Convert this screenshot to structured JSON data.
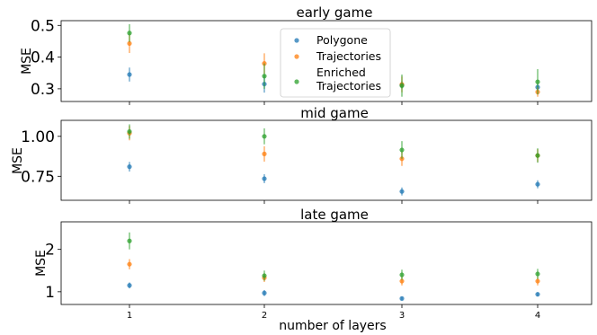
{
  "xlabel": "number of layers",
  "legend": {
    "placement": "upper center of top panel",
    "entries": [
      {
        "label": "Polygone",
        "color": "#1f77b4"
      },
      {
        "label": "Trajectories",
        "color": "#ff7f0e"
      },
      {
        "label": "Enriched\nTrajectories",
        "color": "#2ca02c"
      }
    ]
  },
  "chart_data": [
    {
      "type": "scatter",
      "title": "early game",
      "ylabel": "MSE",
      "xlabel": "",
      "x": [
        1,
        2,
        3,
        4
      ],
      "xticks": [
        1,
        2,
        3,
        4
      ],
      "ylim": [
        0.26,
        0.515
      ],
      "yticks": [
        0.3,
        0.4,
        0.5
      ],
      "ytick_labels": [
        "0.3",
        "0.4",
        "0.5"
      ],
      "grid": false,
      "series": [
        {
          "name": "Polygone",
          "color": "#1f77b4",
          "values": [
            0.345,
            0.315,
            0.312,
            0.305
          ],
          "err": [
            0.022,
            0.027,
            0.012,
            0.012
          ]
        },
        {
          "name": "Trajectories",
          "color": "#ff7f0e",
          "values": [
            0.443,
            0.38,
            0.314,
            0.29
          ],
          "err": [
            0.03,
            0.032,
            0.025,
            0.015
          ]
        },
        {
          "name": "Enriched Trajectories",
          "color": "#2ca02c",
          "values": [
            0.476,
            0.34,
            0.31,
            0.322
          ],
          "err": [
            0.028,
            0.04,
            0.035,
            0.04
          ]
        }
      ]
    },
    {
      "type": "scatter",
      "title": "mid game",
      "ylabel": "MSE",
      "xlabel": "",
      "x": [
        1,
        2,
        3,
        4
      ],
      "xticks": [
        1,
        2,
        3,
        4
      ],
      "ylim": [
        0.6,
        1.1
      ],
      "yticks": [
        0.75,
        1.0
      ],
      "ytick_labels": [
        "0.75",
        "1.00"
      ],
      "grid": false,
      "series": [
        {
          "name": "Polygone",
          "color": "#1f77b4",
          "values": [
            0.81,
            0.735,
            0.655,
            0.7
          ],
          "err": [
            0.03,
            0.028,
            0.025,
            0.025
          ]
        },
        {
          "name": "Trajectories",
          "color": "#ff7f0e",
          "values": [
            1.02,
            0.89,
            0.86,
            0.88
          ],
          "err": [
            0.045,
            0.048,
            0.045,
            0.04
          ]
        },
        {
          "name": "Enriched Trajectories",
          "color": "#2ca02c",
          "values": [
            1.03,
            1.0,
            0.915,
            0.88
          ],
          "err": [
            0.045,
            0.05,
            0.055,
            0.045
          ]
        }
      ]
    },
    {
      "type": "scatter",
      "title": "late game",
      "ylabel": "MSE",
      "xlabel": "number of layers",
      "x": [
        1,
        2,
        3,
        4
      ],
      "xticks": [
        1,
        2,
        3,
        4
      ],
      "ylim": [
        0.7,
        2.65
      ],
      "yticks": [
        1,
        2
      ],
      "ytick_labels": [
        "1",
        "2"
      ],
      "grid": false,
      "series": [
        {
          "name": "Polygone",
          "color": "#1f77b4",
          "values": [
            1.15,
            0.97,
            0.84,
            0.94
          ],
          "err": [
            0.07,
            0.07,
            0.04,
            0.05
          ]
        },
        {
          "name": "Trajectories",
          "color": "#ff7f0e",
          "values": [
            1.65,
            1.33,
            1.25,
            1.25
          ],
          "err": [
            0.12,
            0.1,
            0.1,
            0.1
          ]
        },
        {
          "name": "Enriched Trajectories",
          "color": "#2ca02c",
          "values": [
            2.2,
            1.38,
            1.4,
            1.42
          ],
          "err": [
            0.2,
            0.12,
            0.12,
            0.12
          ]
        }
      ]
    }
  ]
}
